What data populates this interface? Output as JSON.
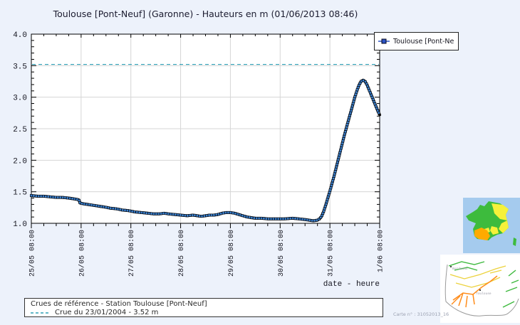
{
  "title": "Toulouse [Pont-Neuf] (Garonne) - Hauteurs en m (01/06/2013 08:46)",
  "legend": {
    "label": "Toulouse [Pont-Ne"
  },
  "axes": {
    "y_ticks": [
      "4.0",
      "3.5",
      "3.0",
      "2.5",
      "2.0",
      "1.5",
      "1.0"
    ],
    "x_ticks": [
      "25/05 08:00",
      "26/05 08:00",
      "27/05 08:00",
      "28/05 08:00",
      "29/05 08:00",
      "30/05 08:00",
      "31/05 08:00",
      "1/06 08:00"
    ],
    "x_label": "date - heure"
  },
  "chart_data": {
    "type": "line",
    "title": "Toulouse [Pont-Neuf] (Garonne) - Hauteurs en m (01/06/2013 08:46)",
    "xlabel": "date - heure",
    "ylabel": "Hauteurs en m",
    "ylim": [
      1.0,
      4.0
    ],
    "x_unit": "hours since 25/05 08:00",
    "x_range_hours": 168,
    "grid": true,
    "legend_position": "top-right",
    "reference_line": {
      "value": 3.52,
      "label": "Crue du 23/01/2004 - 3.52 m",
      "style": "dashed"
    },
    "series": [
      {
        "name": "Toulouse [Pont-Neuf]",
        "points": [
          [
            0,
            1.44
          ],
          [
            3,
            1.43
          ],
          [
            6,
            1.43
          ],
          [
            9,
            1.42
          ],
          [
            12,
            1.41
          ],
          [
            15,
            1.41
          ],
          [
            18,
            1.4
          ],
          [
            20,
            1.39
          ],
          [
            22,
            1.38
          ],
          [
            23,
            1.37
          ],
          [
            23.5,
            1.32
          ],
          [
            25,
            1.31
          ],
          [
            27,
            1.3
          ],
          [
            29,
            1.29
          ],
          [
            31,
            1.28
          ],
          [
            33,
            1.27
          ],
          [
            35,
            1.26
          ],
          [
            38,
            1.24
          ],
          [
            41,
            1.23
          ],
          [
            44,
            1.21
          ],
          [
            47,
            1.2
          ],
          [
            50,
            1.18
          ],
          [
            53,
            1.17
          ],
          [
            56,
            1.16
          ],
          [
            59,
            1.15
          ],
          [
            62,
            1.15
          ],
          [
            64,
            1.16
          ],
          [
            66,
            1.15
          ],
          [
            69,
            1.14
          ],
          [
            72,
            1.13
          ],
          [
            75,
            1.12
          ],
          [
            78,
            1.13
          ],
          [
            80,
            1.12
          ],
          [
            82,
            1.11
          ],
          [
            84,
            1.12
          ],
          [
            86,
            1.13
          ],
          [
            88,
            1.13
          ],
          [
            90,
            1.14
          ],
          [
            92,
            1.16
          ],
          [
            94,
            1.17
          ],
          [
            96,
            1.17
          ],
          [
            98,
            1.16
          ],
          [
            100,
            1.14
          ],
          [
            102,
            1.12
          ],
          [
            104,
            1.1
          ],
          [
            106,
            1.09
          ],
          [
            108,
            1.08
          ],
          [
            111,
            1.08
          ],
          [
            114,
            1.07
          ],
          [
            118,
            1.07
          ],
          [
            122,
            1.07
          ],
          [
            126,
            1.08
          ],
          [
            129,
            1.07
          ],
          [
            132,
            1.06
          ],
          [
            134,
            1.05
          ],
          [
            136,
            1.04
          ],
          [
            138,
            1.05
          ],
          [
            139,
            1.07
          ],
          [
            140,
            1.11
          ],
          [
            141,
            1.19
          ],
          [
            142,
            1.29
          ],
          [
            143,
            1.4
          ],
          [
            144,
            1.51
          ],
          [
            145,
            1.63
          ],
          [
            146,
            1.75
          ],
          [
            147,
            1.88
          ],
          [
            148,
            2.01
          ],
          [
            149,
            2.14
          ],
          [
            150,
            2.27
          ],
          [
            151,
            2.4
          ],
          [
            152,
            2.52
          ],
          [
            153,
            2.64
          ],
          [
            154,
            2.76
          ],
          [
            155,
            2.88
          ],
          [
            156,
            3.0
          ],
          [
            157,
            3.1
          ],
          [
            158,
            3.19
          ],
          [
            159,
            3.25
          ],
          [
            160,
            3.27
          ],
          [
            161,
            3.25
          ],
          [
            162,
            3.19
          ],
          [
            163,
            3.11
          ],
          [
            164,
            3.03
          ],
          [
            165,
            2.95
          ],
          [
            166,
            2.87
          ],
          [
            167,
            2.79
          ],
          [
            168,
            2.72
          ]
        ]
      }
    ]
  },
  "footer_box": {
    "line1": "Crues de référence - Station Toulouse [Pont-Neuf]",
    "line2": "Crue du 23/01/2004 - 3.52 m"
  },
  "maps": {
    "france": {
      "colors": {
        "sea": "#a5cbee",
        "land": "#3dbb3d",
        "yellow": "#f6f13a",
        "orange": "#ffaa00"
      }
    },
    "region": {
      "colors": {
        "coast": "#9a9a9a",
        "green": "#3db93d",
        "yellow": "#ecd23c",
        "orange": "#ff8c1a"
      },
      "cities": [
        "Bordeaux",
        "Toulouse"
      ],
      "carte_label": "Carte n° : 31052013_16"
    }
  },
  "colors": {
    "background": "#edf2fb",
    "plot_bg": "#ffffff",
    "frame": "#000000",
    "grid": "#d6d6d6",
    "curve_line": "#0d0d0d",
    "marker": "#3b82d0",
    "reference": "#2e9fb5",
    "legend_marker": "#2a52c4",
    "text": "#15151f"
  }
}
